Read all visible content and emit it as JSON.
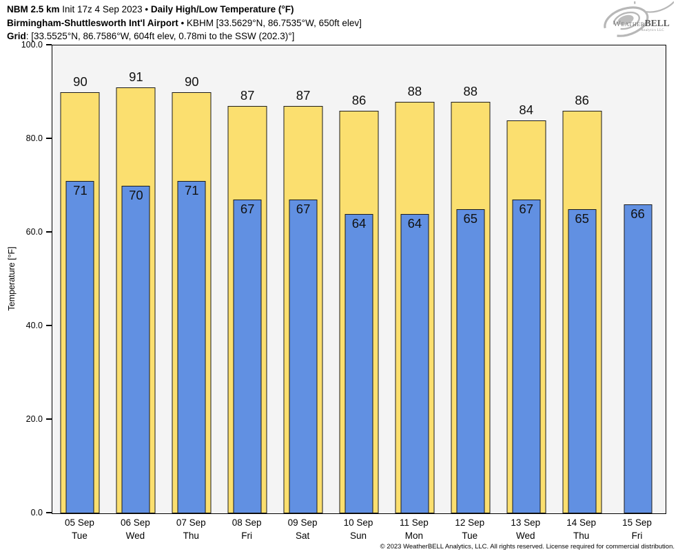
{
  "header": {
    "line1_bold1": "NBM 2.5 km",
    "line1_mid": " Init 17z 4 Sep 2023 • ",
    "line1_bold2": "Daily High/Low Temperature (°F)",
    "line2_bold": "Birmingham-Shuttlesworth Int'l Airport",
    "line2_rest": " • KBHM [33.5629°N, 86.7535°W, 650ft elev]",
    "line3_bold": "Grid",
    "line3_rest": ": [33.5525°N, 86.7586°W, 604ft elev, 0.78mi to the SSW (202.3)°]"
  },
  "logo": {
    "weather": "Weather",
    "bell": "BELL",
    "sub": "Analytics LLC"
  },
  "chart_data": {
    "type": "bar",
    "title": "NBM 2.5 km Init 17z 4 Sep 2023 • Daily High/Low Temperature (°F)",
    "subtitle": "Birmingham-Shuttlesworth Int'l Airport • KBHM [33.5629°N, 86.7535°W, 650ft elev]",
    "grid_note": "Grid: [33.5525°N, 86.7586°W, 604ft elev, 0.78mi to the SSW (202.3)°]",
    "ylabel": "Temperature [°F]",
    "ylim": [
      0,
      100
    ],
    "yticks": [
      100,
      80,
      60,
      40,
      20,
      0
    ],
    "grid": false,
    "legend": "none",
    "categories": [
      {
        "date": "05 Sep",
        "day": "Tue"
      },
      {
        "date": "06 Sep",
        "day": "Wed"
      },
      {
        "date": "07 Sep",
        "day": "Thu"
      },
      {
        "date": "08 Sep",
        "day": "Fri"
      },
      {
        "date": "09 Sep",
        "day": "Sat"
      },
      {
        "date": "10 Sep",
        "day": "Sun"
      },
      {
        "date": "11 Sep",
        "day": "Mon"
      },
      {
        "date": "12 Sep",
        "day": "Tue"
      },
      {
        "date": "13 Sep",
        "day": "Wed"
      },
      {
        "date": "14 Sep",
        "day": "Thu"
      },
      {
        "date": "15 Sep",
        "day": "Fri"
      }
    ],
    "series": [
      {
        "name": "High",
        "color": "#fbdf6f",
        "values": [
          90,
          91,
          90,
          87,
          87,
          86,
          88,
          88,
          84,
          86,
          null
        ]
      },
      {
        "name": "Low",
        "color": "#6190e2",
        "values": [
          71,
          70,
          71,
          67,
          67,
          64,
          64,
          65,
          67,
          65,
          66
        ]
      }
    ]
  },
  "footer": {
    "copyright": "© 2023 WeatherBELL Analytics, LLC. All rights reserved. License required for commercial distribution."
  }
}
